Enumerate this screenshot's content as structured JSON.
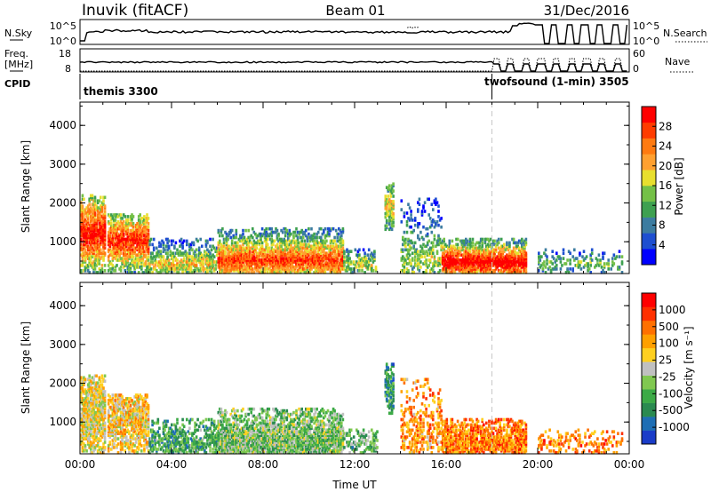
{
  "header": {
    "station": "Inuvik (fitACF)",
    "beam": "Beam 01",
    "date": "31/Dec/2016"
  },
  "panels": {
    "nsky_label": "N.Sky",
    "nsky_ticks": [
      "10^5",
      "10^0"
    ],
    "nsearch_label": "N.Search",
    "nsearch_ticks": [
      "10^5",
      "10^0"
    ],
    "freq_label": "Freq.",
    "freq_unit": "[MHz]",
    "freq_ticks": [
      "18",
      "8"
    ],
    "nave_label": "Nave",
    "nave_ticks": [
      "60",
      "0"
    ],
    "cpid_label": "CPID",
    "cpid_modes": [
      {
        "name": "themis 3300",
        "start_hour": 0
      },
      {
        "name": "twofsound (1-min) 3505",
        "start_hour": 18
      }
    ]
  },
  "chart_data": [
    {
      "type": "heatmap",
      "title": "",
      "xlabel": "",
      "ylabel": "Slant Range [km]",
      "xlim": [
        0,
        24
      ],
      "ylim": [
        180,
        4600
      ],
      "x_tick_labels": [
        "00:00",
        "04:00",
        "08:00",
        "12:00",
        "16:00",
        "20:00",
        "00:00"
      ],
      "y_ticks": [
        1000,
        2000,
        3000,
        4000
      ],
      "colorbar": {
        "label": "Power [dB]",
        "ticks": [
          "28",
          "24",
          "20",
          "16",
          "12",
          "8",
          "4"
        ],
        "colors": [
          "#0000ff",
          "#1e4fd0",
          "#3c7ca0",
          "#3ea050",
          "#74c047",
          "#e8df2e",
          "#ffa030",
          "#ff7a10",
          "#ff3c00",
          "#ff0000"
        ]
      },
      "mode_change_hour": 18,
      "scatter_regions": [
        {
          "t0": 0.0,
          "t1": 1.1,
          "r0": 180,
          "r1": 2200,
          "peak": 1200,
          "level": 0.9,
          "density": 0.85
        },
        {
          "t0": 1.2,
          "t1": 3.0,
          "r0": 180,
          "r1": 1700,
          "peak": 1000,
          "level": 0.85,
          "density": 0.8
        },
        {
          "t0": 3.0,
          "t1": 6.0,
          "r0": 180,
          "r1": 1100,
          "peak": 400,
          "level": 0.55,
          "density": 0.55
        },
        {
          "t0": 6.0,
          "t1": 11.5,
          "r0": 180,
          "r1": 1350,
          "peak": 500,
          "level": 0.8,
          "density": 0.85
        },
        {
          "t0": 11.5,
          "t1": 13.0,
          "r0": 180,
          "r1": 800,
          "peak": 400,
          "level": 0.5,
          "density": 0.4
        },
        {
          "t0": 13.3,
          "t1": 13.7,
          "r0": 1200,
          "r1": 2500,
          "peak": 1900,
          "level": 0.55,
          "density": 0.6
        },
        {
          "t0": 14.0,
          "t1": 15.8,
          "r0": 180,
          "r1": 2100,
          "peak": 500,
          "level": 0.45,
          "density": 0.35
        },
        {
          "t0": 15.8,
          "t1": 19.5,
          "r0": 180,
          "r1": 1100,
          "peak": 450,
          "level": 0.95,
          "density": 0.85
        },
        {
          "t0": 20.0,
          "t1": 23.7,
          "r0": 180,
          "r1": 800,
          "peak": 400,
          "level": 0.4,
          "density": 0.25
        }
      ]
    },
    {
      "type": "heatmap",
      "title": "",
      "xlabel": "Time UT",
      "ylabel": "Slant Range [km]",
      "xlim": [
        0,
        24
      ],
      "ylim": [
        180,
        4600
      ],
      "x_tick_labels": [
        "00:00",
        "04:00",
        "08:00",
        "12:00",
        "16:00",
        "20:00",
        "00:00"
      ],
      "y_ticks": [
        1000,
        2000,
        3000,
        4000
      ],
      "colorbar": {
        "label": "Velocity [m s⁻¹]",
        "ticks": [
          "1000",
          "500",
          "100",
          "25",
          "-25",
          "-100",
          "-500",
          "-1000"
        ],
        "colors": [
          "#1a3cc8",
          "#1e6eb4",
          "#2a8a50",
          "#3caa46",
          "#80c850",
          "#c0c0c0",
          "#ffd020",
          "#ffa000",
          "#ff7000",
          "#ff3000",
          "#ff0000"
        ]
      },
      "mode_change_hour": 18,
      "scatter_regions": [
        {
          "t0": 0.0,
          "t1": 1.1,
          "r0": 180,
          "r1": 2200,
          "peak": 1200,
          "level": 0.55,
          "density": 0.8
        },
        {
          "t0": 1.2,
          "t1": 3.0,
          "r0": 180,
          "r1": 1700,
          "peak": 1000,
          "level": 0.6,
          "density": 0.75
        },
        {
          "t0": 3.0,
          "t1": 6.0,
          "r0": 180,
          "r1": 1100,
          "peak": 400,
          "level": 0.3,
          "density": 0.55
        },
        {
          "t0": 6.0,
          "t1": 11.5,
          "r0": 180,
          "r1": 1350,
          "peak": 500,
          "level": 0.4,
          "density": 0.85
        },
        {
          "t0": 11.5,
          "t1": 13.0,
          "r0": 180,
          "r1": 800,
          "peak": 400,
          "level": 0.35,
          "density": 0.4
        },
        {
          "t0": 13.3,
          "t1": 13.7,
          "r0": 1200,
          "r1": 2500,
          "peak": 1900,
          "level": 0.25,
          "density": 0.6
        },
        {
          "t0": 14.0,
          "t1": 15.8,
          "r0": 180,
          "r1": 2100,
          "peak": 500,
          "level": 0.7,
          "density": 0.35
        },
        {
          "t0": 15.8,
          "t1": 19.5,
          "r0": 180,
          "r1": 1100,
          "peak": 450,
          "level": 0.75,
          "density": 0.8
        },
        {
          "t0": 20.0,
          "t1": 23.7,
          "r0": 180,
          "r1": 800,
          "peak": 400,
          "level": 0.75,
          "density": 0.25
        }
      ]
    }
  ]
}
